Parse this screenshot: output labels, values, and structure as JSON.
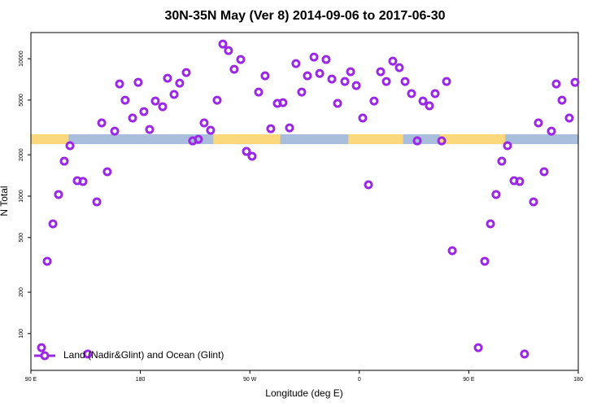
{
  "chart_data": {
    "type": "scatter",
    "title": "30N-35N May (Ver 8)   2014-09-06 to 2017-06-30",
    "x_label": "Longitude (deg E)",
    "y_label": "N Total",
    "xlim": [
      90,
      540
    ],
    "ylim": [
      54,
      15500
    ],
    "y_scale": "log",
    "xticks": [
      {
        "value": 90,
        "label": "90 E"
      },
      180,
      {
        "value": 270,
        "label": "90 W"
      },
      {
        "value": 360,
        "label": "0"
      },
      {
        "value": 450,
        "label": "90 E"
      },
      {
        "value": 540,
        "label": "180"
      }
    ],
    "yticks": [
      100,
      200,
      500,
      1000,
      2000,
      5000,
      10000
    ],
    "legend": "bottom-left",
    "surface_band": {
      "ylim": [
        2390,
        2820
      ],
      "land_color": "#fcd87c",
      "ocean_color": "#a9bedd",
      "land": [
        [
          90,
          121
        ],
        [
          240,
          295
        ],
        [
          351,
          396
        ],
        [
          426,
          480
        ]
      ]
    },
    "series": [
      {
        "name": "Land (Nadir&Glint) and Ocean (Glint)",
        "color": "#9a28e6",
        "x": [
          98.7,
          103.4,
          108.1,
          112.7,
          117.4,
          122.1,
          128.1,
          132.8,
          136.8,
          144.2,
          148.2,
          152.8,
          158.9,
          162.9,
          167.5,
          173.6,
          178.2,
          182.9,
          187.6,
          192.3,
          198.3,
          202.3,
          207.7,
          212.3,
          217.7,
          223.0,
          227.7,
          232.4,
          237.7,
          243.1,
          247.8,
          252.4,
          257.1,
          262.5,
          267.2,
          271.8,
          277.2,
          282.5,
          287.2,
          292.6,
          297.2,
          302.6,
          307.9,
          312.6,
          317.3,
          322.7,
          327.4,
          332.7,
          337.4,
          342.1,
          348.1,
          352.8,
          357.5,
          362.8,
          367.5,
          372.1,
          377.5,
          382.2,
          387.5,
          392.9,
          397.6,
          402.9,
          407.6,
          412.3,
          417.6,
          422.3,
          427.7,
          431.7,
          436.4,
          457.8,
          463.1,
          467.8,
          472.4,
          477.1,
          481.8,
          487.2,
          491.8,
          495.8,
          503.2,
          507.2,
          511.9,
          517.9,
          521.9,
          526.6,
          532.6,
          537.3
        ],
        "values": [
          79,
          336,
          629,
          1028,
          1797,
          2328,
          1296,
          1279,
          71,
          909,
          3410,
          1505,
          2973,
          6555,
          4989,
          3700,
          6730,
          4125,
          3056,
          4923,
          4477,
          7207,
          5495,
          6640,
          7930,
          2525,
          2594,
          3410,
          3015,
          4989,
          12790,
          11460,
          8375,
          9863,
          2115,
          1950,
          5715,
          7510,
          3097,
          4730,
          4790,
          3140,
          9210,
          5715,
          7510,
          10280,
          7815,
          9863,
          7110,
          4730,
          6825,
          8040,
          6380,
          3700,
          1210,
          4923,
          8040,
          6825,
          9600,
          8610,
          6825,
          5570,
          2525,
          4923,
          4540,
          5570,
          2525,
          6825,
          401,
          79,
          336,
          629,
          1028,
          1797,
          2328,
          1296,
          1279,
          71,
          909,
          3410,
          1505,
          2973,
          6555,
          4989,
          3700,
          6730
        ]
      }
    ]
  }
}
